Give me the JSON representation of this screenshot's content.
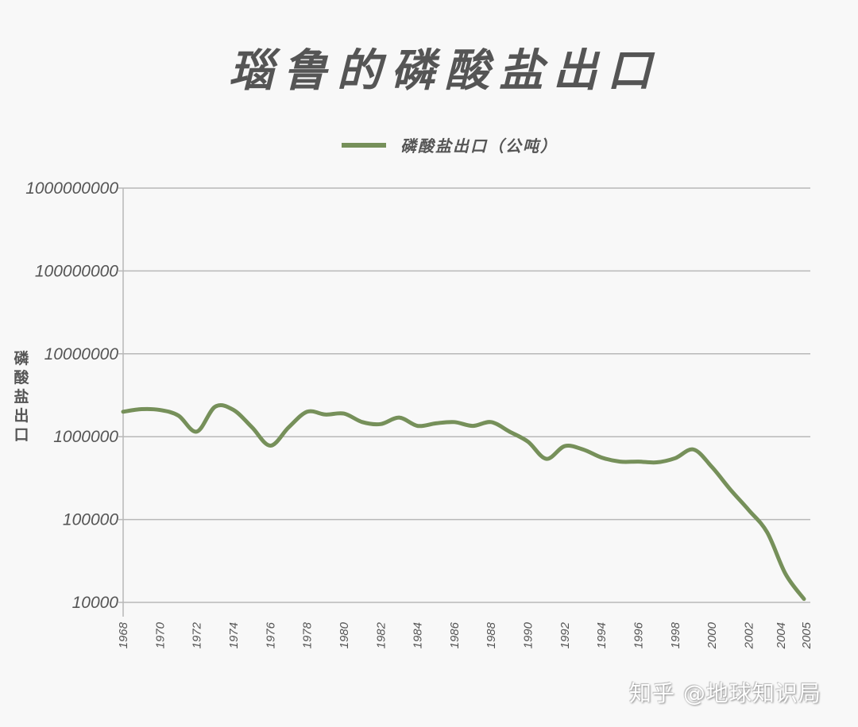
{
  "title": "瑙鲁的磷酸盐出口",
  "legend": {
    "label": "磷酸盐出口（公吨）",
    "color": "#76905a"
  },
  "ylabel": "磷酸盐出口",
  "watermark": "知乎 @地球知识局",
  "colors": {
    "line": "#76905a",
    "grid": "#b8b8b8",
    "text": "#555555",
    "background": "#f8f8f8"
  },
  "chart_data": {
    "type": "line",
    "title": "瑙鲁的磷酸盐出口",
    "xlabel": "",
    "ylabel": "磷酸盐出口",
    "yscale": "log",
    "ylim": [
      10000,
      1000000000
    ],
    "grid": true,
    "legend_position": "top",
    "y_ticks": [
      "1000000000",
      "100000000",
      "10000000",
      "1000000",
      "100000",
      "10000"
    ],
    "x_ticks": [
      "1968",
      "1970",
      "1972",
      "1974",
      "1976",
      "1978",
      "1980",
      "1982",
      "1984",
      "1986",
      "1988",
      "1990",
      "1992",
      "1994",
      "1996",
      "1998",
      "2000",
      "2002",
      "2004",
      "2005"
    ],
    "series": [
      {
        "name": "磷酸盐出口（公吨）",
        "x": [
          1968,
          1969,
          1970,
          1971,
          1972,
          1973,
          1974,
          1975,
          1976,
          1977,
          1978,
          1979,
          1980,
          1981,
          1982,
          1983,
          1984,
          1985,
          1986,
          1987,
          1988,
          1989,
          1990,
          1991,
          1992,
          1993,
          1994,
          1995,
          1996,
          1997,
          1998,
          1999,
          2000,
          2001,
          2002,
          2003,
          2004,
          2005
        ],
        "values": [
          2000000,
          2150000,
          2100000,
          1800000,
          1150000,
          2300000,
          2100000,
          1300000,
          780000,
          1300000,
          2000000,
          1850000,
          1900000,
          1500000,
          1420000,
          1700000,
          1350000,
          1450000,
          1500000,
          1350000,
          1500000,
          1150000,
          870000,
          540000,
          770000,
          700000,
          560000,
          500000,
          500000,
          490000,
          550000,
          700000,
          430000,
          230000,
          130000,
          70000,
          22000,
          11000
        ]
      }
    ]
  }
}
